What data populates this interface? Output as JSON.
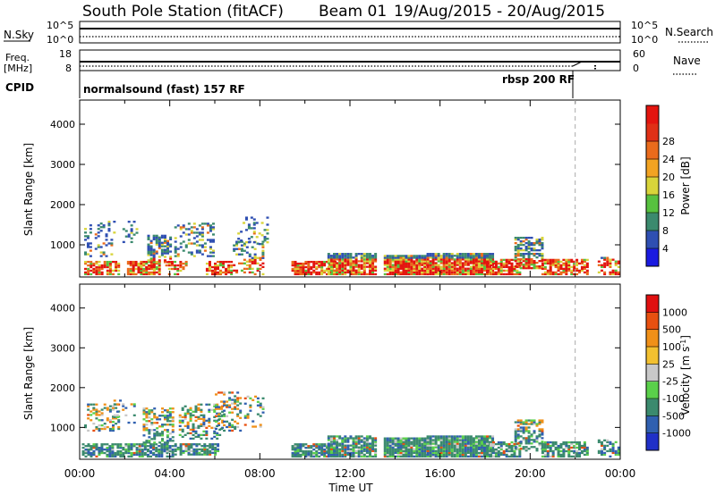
{
  "header": {
    "station": "South Pole Station (fitACF)",
    "beam": "Beam 01",
    "dates": "19/Aug/2015 - 20/Aug/2015"
  },
  "noise_panel": {
    "left_label": "N.Sky",
    "right_label": "N.Search",
    "tick_top": "10^5",
    "tick_bottom": "10^0"
  },
  "freq_panel": {
    "left_label_line1": "Freq.",
    "left_label_line2": "[MHz]",
    "left_tick_top": "18",
    "left_tick_bottom": "8",
    "right_label": "Nave",
    "right_tick_top": "60",
    "right_tick_bottom": "0"
  },
  "cpid_panel": {
    "label": "CPID",
    "segments": [
      {
        "text": "normalsound (fast) 157 RF",
        "start_hour": 0
      },
      {
        "text": "rbsp 200 RF",
        "start_hour": 22
      }
    ]
  },
  "chart_data": [
    {
      "type": "heatmap",
      "name": "power",
      "ylabel": "Slant Range [km]",
      "xlabel": "",
      "xlim_hours": [
        0,
        24
      ],
      "ylim": [
        200,
        4600
      ],
      "yticks": [
        "1000",
        "2000",
        "3000",
        "4000"
      ],
      "xticks": [
        "00:00",
        "04:00",
        "08:00",
        "12:00",
        "16:00",
        "20:00",
        "00:00"
      ],
      "colorbar": {
        "label": "Power [dB]",
        "ticks": [
          "4",
          "8",
          "12",
          "16",
          "20",
          "24",
          "28"
        ],
        "colors": [
          "#1a1ae0",
          "#2f4fb2",
          "#3b8a6e",
          "#57c13f",
          "#d8d43a",
          "#f2a322",
          "#ea6b1c",
          "#e03016",
          "#e3150f"
        ]
      }
    },
    {
      "type": "heatmap",
      "name": "velocity",
      "ylabel": "Slant Range [km]",
      "xlabel": "Time UT",
      "xlim_hours": [
        0,
        24
      ],
      "ylim": [
        200,
        4600
      ],
      "yticks": [
        "1000",
        "2000",
        "3000",
        "4000"
      ],
      "xticks": [
        "00:00",
        "04:00",
        "08:00",
        "12:00",
        "16:00",
        "20:00",
        "00:00"
      ],
      "colorbar": {
        "label": "Velocity [m s-1]",
        "ticks": [
          "1000",
          "500",
          "100",
          "25",
          "-25",
          "-100",
          "-500",
          "-1000"
        ],
        "colors": [
          "#2030c8",
          "#3060b0",
          "#3b8a6e",
          "#5ad04a",
          "#c8c8c8",
          "#f2c030",
          "#f09018",
          "#e85010",
          "#e01010"
        ]
      }
    }
  ]
}
